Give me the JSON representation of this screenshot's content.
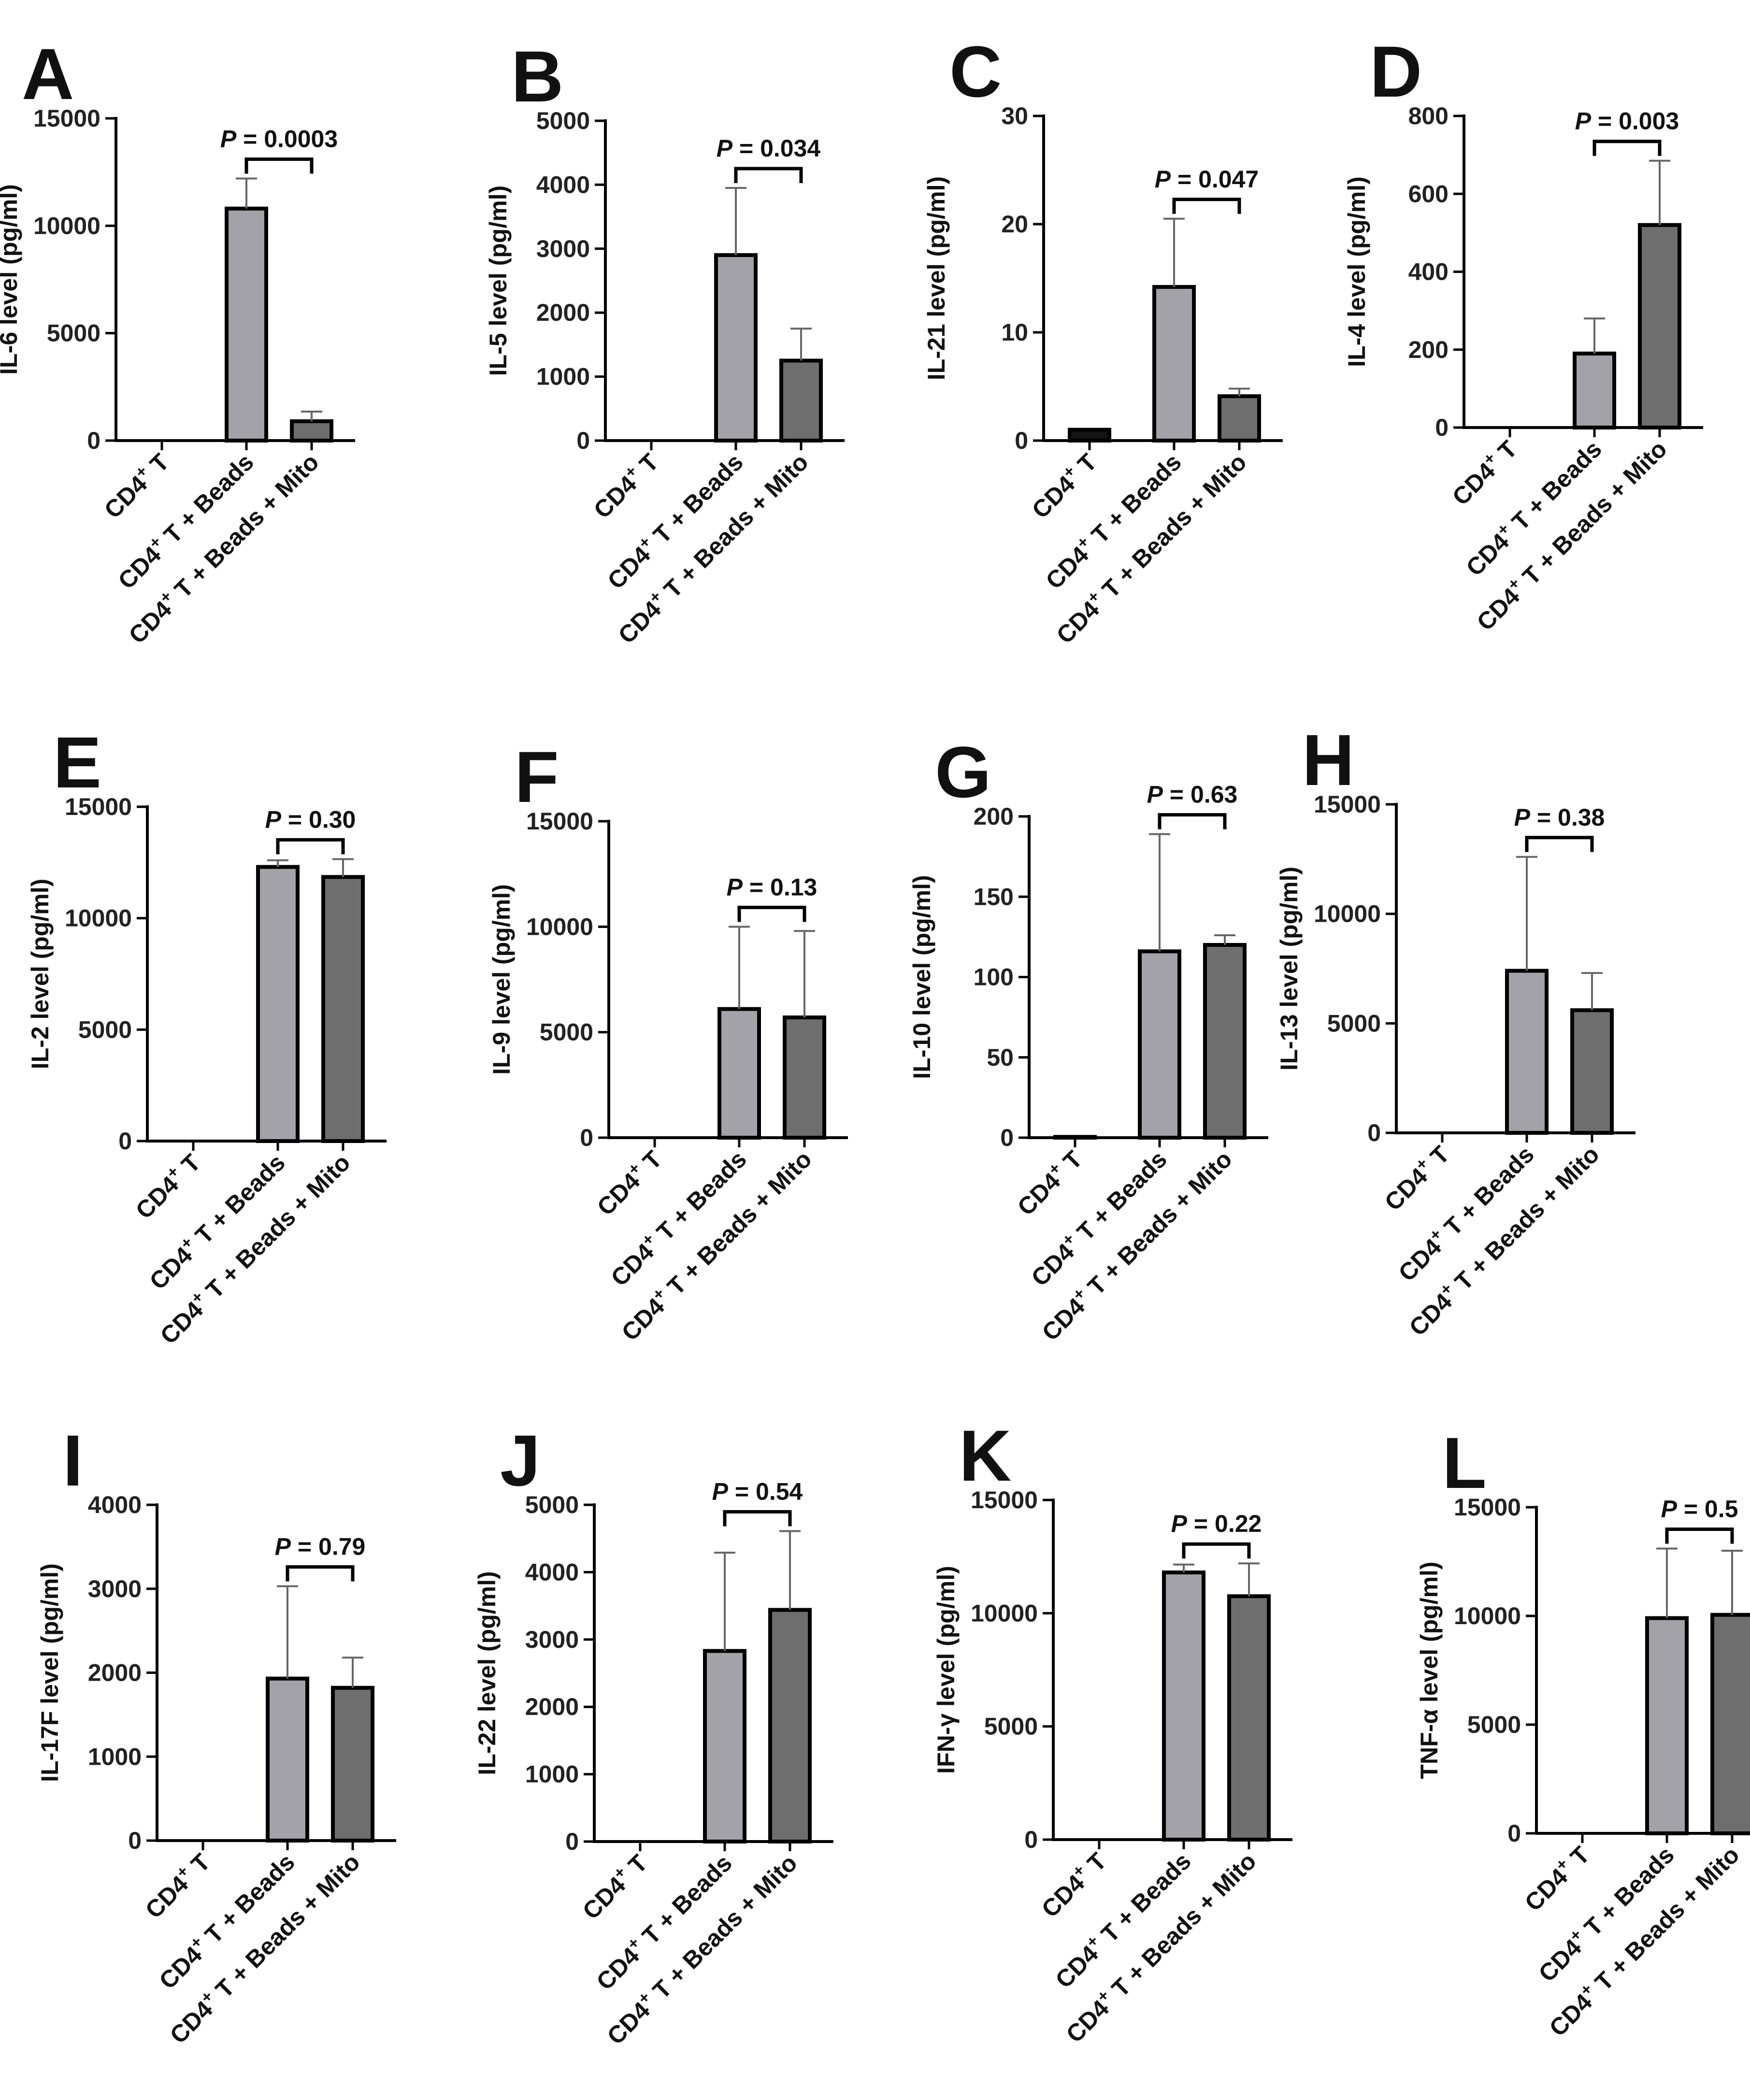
{
  "colors": {
    "bar_control": "#141414",
    "bar_beads": "#a2a2a8",
    "bar_mito": "#6e6e6e",
    "stroke": "#000000",
    "error": "#666666"
  },
  "categories": [
    {
      "prefix": "CD4",
      "sup": "+",
      "suffix": " T"
    },
    {
      "prefix": "CD4",
      "sup": "+",
      "suffix": " T + Beads"
    },
    {
      "prefix": "CD4",
      "sup": "+",
      "suffix": " T + Beads + Mito"
    }
  ],
  "chart_data": [
    {
      "panel": "A",
      "type": "bar",
      "ylabel": "IL-6 level (pg/ml)",
      "ylim": [
        0,
        15000
      ],
      "yticks": [
        0,
        5000,
        10000,
        15000
      ],
      "values": [
        0,
        10800,
        900
      ],
      "errors": [
        0,
        1400,
        450
      ],
      "bracket": {
        "from": 1,
        "to": 2,
        "p_label": "P",
        "p_value": " = 0.0003"
      }
    },
    {
      "panel": "B",
      "type": "bar",
      "ylabel": "IL-5 level (pg/ml)",
      "ylim": [
        0,
        5000
      ],
      "yticks": [
        0,
        1000,
        2000,
        3000,
        4000,
        5000
      ],
      "values": [
        0,
        2900,
        1250
      ],
      "errors": [
        0,
        1050,
        500
      ],
      "bracket": {
        "from": 1,
        "to": 2,
        "p_label": "P",
        "p_value": " = 0.034"
      }
    },
    {
      "panel": "C",
      "type": "bar",
      "ylabel": "IL-21 level (pg/ml)",
      "ylim": [
        0,
        30
      ],
      "yticks": [
        0,
        10,
        20,
        30
      ],
      "values": [
        1.0,
        14.2,
        4.1
      ],
      "errors": [
        0,
        6.3,
        0.7
      ],
      "bracket": {
        "from": 1,
        "to": 2,
        "p_label": "P",
        "p_value": " = 0.047"
      }
    },
    {
      "panel": "D",
      "type": "bar",
      "ylabel": "IL-4 level (pg/ml)",
      "ylim": [
        0,
        800
      ],
      "yticks": [
        0,
        200,
        400,
        600,
        800
      ],
      "values": [
        0,
        190,
        520
      ],
      "errors": [
        0,
        90,
        165
      ],
      "bracket": {
        "from": 1,
        "to": 2,
        "p_label": "P",
        "p_value": " = 0.003"
      }
    },
    {
      "panel": "E",
      "type": "bar",
      "ylabel": "IL-2 level (pg/ml)",
      "ylim": [
        0,
        15000
      ],
      "yticks": [
        0,
        5000,
        10000,
        15000
      ],
      "values": [
        0,
        12300,
        11850
      ],
      "errors": [
        0,
        300,
        800
      ],
      "bracket": {
        "from": 1,
        "to": 2,
        "p_label": "P",
        "p_value": " = 0.30"
      }
    },
    {
      "panel": "F",
      "type": "bar",
      "ylabel": "IL-9 level (pg/ml)",
      "ylim": [
        0,
        15000
      ],
      "yticks": [
        0,
        5000,
        10000,
        15000
      ],
      "values": [
        0,
        6100,
        5700
      ],
      "errors": [
        0,
        3900,
        4100
      ],
      "bracket": {
        "from": 1,
        "to": 2,
        "p_label": "P",
        "p_value": " = 0.13"
      }
    },
    {
      "panel": "G",
      "type": "bar",
      "ylabel": "IL-10 level (pg/ml)",
      "ylim": [
        0,
        200
      ],
      "yticks": [
        0,
        50,
        100,
        150,
        200
      ],
      "values": [
        0.5,
        116,
        120
      ],
      "errors": [
        0,
        73,
        6
      ],
      "bracket": {
        "from": 1,
        "to": 2,
        "p_label": "P",
        "p_value": " = 0.63"
      }
    },
    {
      "panel": "H",
      "type": "bar",
      "ylabel": "IL-13 level (pg/ml)",
      "ylim": [
        0,
        15000
      ],
      "yticks": [
        0,
        5000,
        10000,
        15000
      ],
      "values": [
        0,
        7400,
        5600
      ],
      "errors": [
        0,
        5200,
        1700
      ],
      "bracket": {
        "from": 1,
        "to": 2,
        "p_label": "P",
        "p_value": " = 0.38"
      }
    },
    {
      "panel": "I",
      "type": "bar",
      "ylabel": "IL-17F level (pg/ml)",
      "ylim": [
        0,
        4000
      ],
      "yticks": [
        0,
        1000,
        2000,
        3000,
        4000
      ],
      "values": [
        0,
        1930,
        1820
      ],
      "errors": [
        0,
        1100,
        360
      ],
      "bracket": {
        "from": 1,
        "to": 2,
        "p_label": "P",
        "p_value": " = 0.79"
      }
    },
    {
      "panel": "J",
      "type": "bar",
      "ylabel": "IL-22 level (pg/ml)",
      "ylim": [
        0,
        5000
      ],
      "yticks": [
        0,
        1000,
        2000,
        3000,
        4000,
        5000
      ],
      "values": [
        0,
        2830,
        3440
      ],
      "errors": [
        0,
        1460,
        1170
      ],
      "bracket": {
        "from": 1,
        "to": 2,
        "p_label": "P",
        "p_value": " = 0.54"
      }
    },
    {
      "panel": "K",
      "type": "bar",
      "ylabel": "IFN-γ level (pg/ml)",
      "ylim": [
        0,
        15000
      ],
      "yticks": [
        0,
        5000,
        10000,
        15000
      ],
      "values": [
        0,
        11800,
        10750
      ],
      "errors": [
        0,
        350,
        1450
      ],
      "bracket": {
        "from": 1,
        "to": 2,
        "p_label": "P",
        "p_value": " = 0.22"
      }
    },
    {
      "panel": "L",
      "type": "bar",
      "ylabel": "TNF-α level (pg/ml)",
      "ylim": [
        0,
        15000
      ],
      "yticks": [
        0,
        5000,
        10000,
        15000
      ],
      "values": [
        0,
        9900,
        10050
      ],
      "errors": [
        0,
        3200,
        2950
      ],
      "bracket": {
        "from": 1,
        "to": 2,
        "p_label": "P",
        "p_value": " = 0.5"
      }
    }
  ]
}
